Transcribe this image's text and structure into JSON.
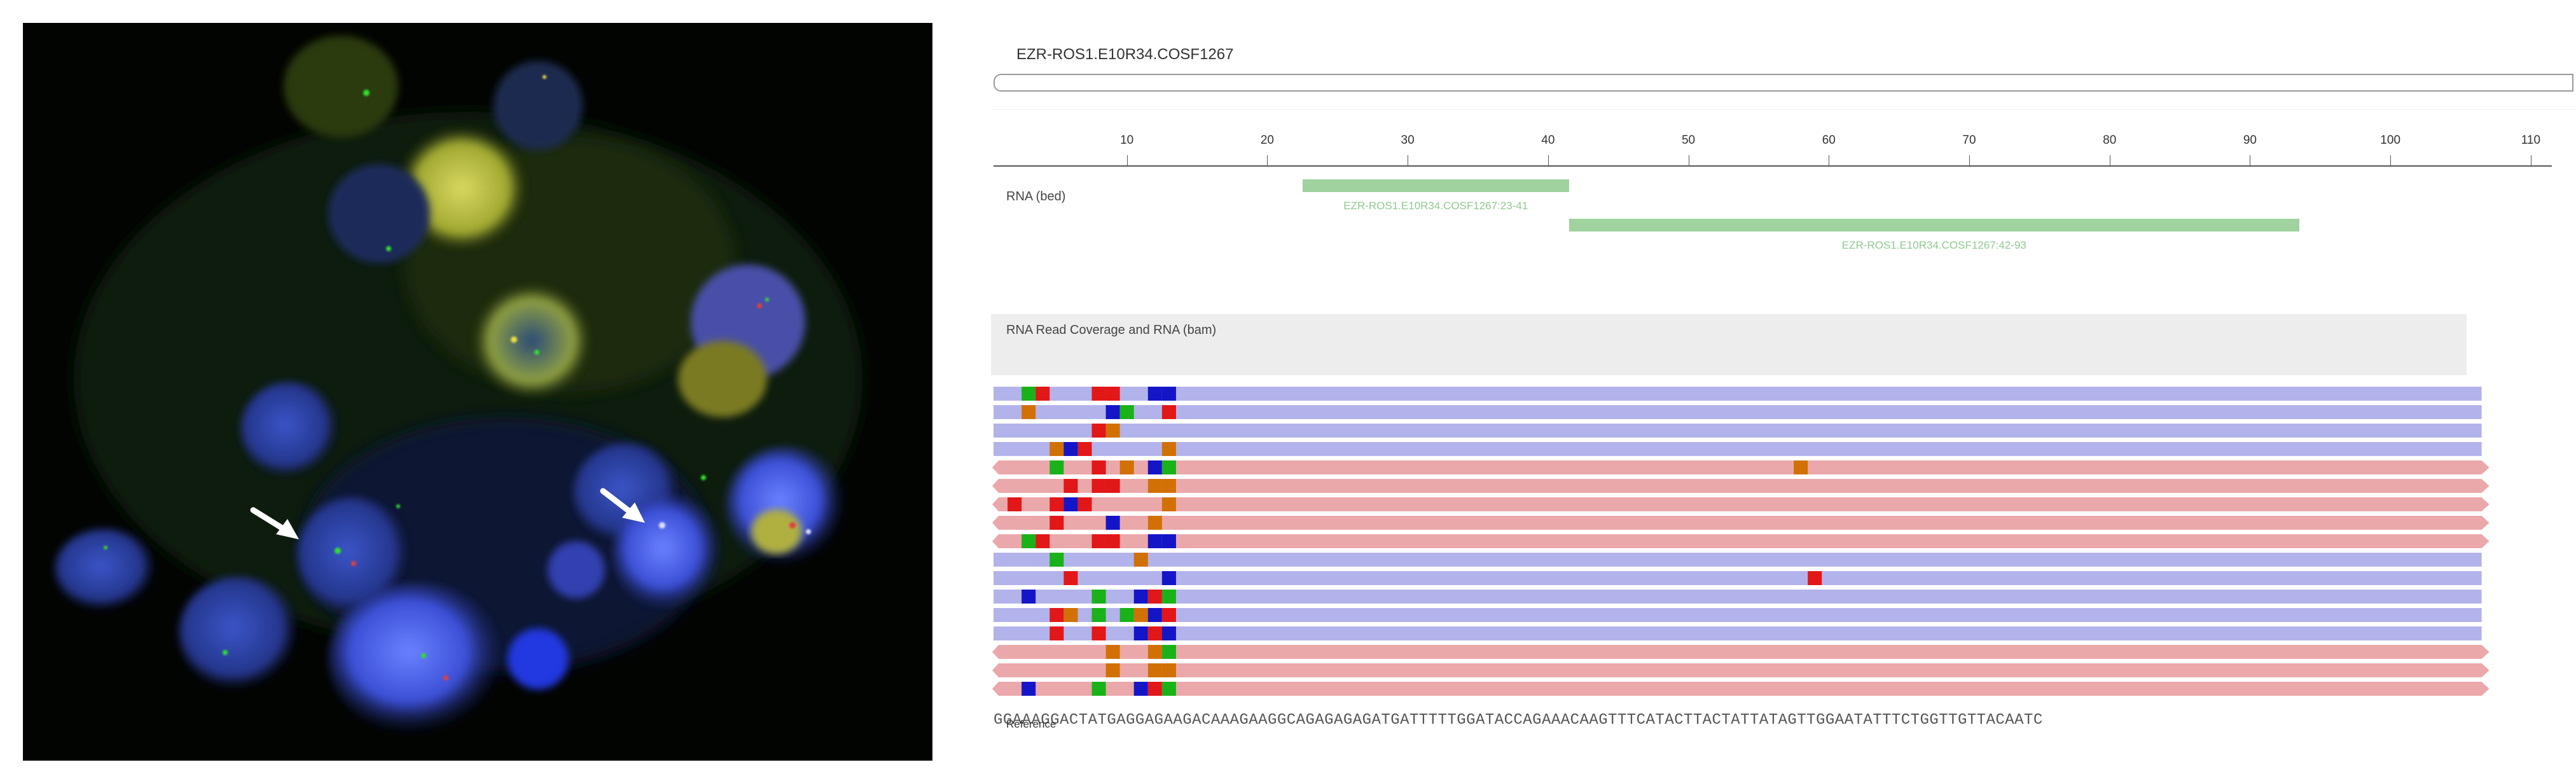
{
  "fish_image": {
    "caption": "",
    "arrows": [
      "arrow-left",
      "arrow-right"
    ]
  },
  "igv": {
    "locus_title": "EZR-ROS1.E10R34.COSF1267",
    "ruler": {
      "ticks": [
        10,
        20,
        30,
        40,
        50,
        60,
        70,
        80,
        90,
        100,
        110
      ],
      "range": [
        0.5,
        111.5
      ]
    },
    "bed_track": {
      "label": "RNA (bed)",
      "features": [
        {
          "name": "EZR-ROS1.E10R34.COSF1267:23-41",
          "start": 23,
          "end": 41
        },
        {
          "name": "EZR-ROS1.E10R34.COSF1267:42-93",
          "start": 42,
          "end": 93
        }
      ]
    },
    "coverage_track": {
      "label": "RNA Read Coverage and RNA (bam)"
    },
    "reference": {
      "label": "Reference",
      "sequence": "GGAAAGGACTATGAGGAGAAGACAAAGAAGGCAGAGAGAGATGATTTTTGGATACCAGAAACAAGTTTCATACTTACTATTATAGTTGGAATATTTCTGGTTGTTACAATC"
    },
    "reads": [
      {
        "strand": "+",
        "mismatches": [
          [
            3,
            "G"
          ],
          [
            4,
            "R"
          ],
          [
            8,
            "R"
          ],
          [
            9,
            "R"
          ],
          [
            12,
            "B"
          ],
          [
            13,
            "B"
          ]
        ]
      },
      {
        "strand": "+",
        "mismatches": [
          [
            3,
            "O"
          ],
          [
            9,
            "B"
          ],
          [
            10,
            "G"
          ],
          [
            13,
            "R"
          ]
        ]
      },
      {
        "strand": "+",
        "mismatches": [
          [
            8,
            "R"
          ],
          [
            9,
            "O"
          ]
        ]
      },
      {
        "strand": "+",
        "mismatches": [
          [
            5,
            "O"
          ],
          [
            6,
            "B"
          ],
          [
            7,
            "R"
          ],
          [
            13,
            "O"
          ]
        ]
      },
      {
        "strand": "-",
        "mismatches": [
          [
            5,
            "G"
          ],
          [
            8,
            "R"
          ],
          [
            10,
            "O"
          ],
          [
            12,
            "B"
          ],
          [
            13,
            "G"
          ],
          [
            58,
            "O"
          ]
        ]
      },
      {
        "strand": "-",
        "mismatches": [
          [
            6,
            "R"
          ],
          [
            8,
            "R"
          ],
          [
            9,
            "R"
          ],
          [
            12,
            "O"
          ],
          [
            13,
            "O"
          ]
        ]
      },
      {
        "strand": "-",
        "mismatches": [
          [
            2,
            "R"
          ],
          [
            5,
            "R"
          ],
          [
            6,
            "B"
          ],
          [
            7,
            "R"
          ],
          [
            13,
            "O"
          ]
        ]
      },
      {
        "strand": "-",
        "mismatches": [
          [
            5,
            "R"
          ],
          [
            9,
            "B"
          ],
          [
            12,
            "O"
          ]
        ]
      },
      {
        "strand": "-",
        "mismatches": [
          [
            3,
            "G"
          ],
          [
            4,
            "R"
          ],
          [
            8,
            "R"
          ],
          [
            9,
            "R"
          ],
          [
            12,
            "B"
          ],
          [
            13,
            "B"
          ]
        ]
      },
      {
        "strand": "+",
        "mismatches": [
          [
            5,
            "G"
          ],
          [
            11,
            "O"
          ]
        ]
      },
      {
        "strand": "+",
        "mismatches": [
          [
            6,
            "R"
          ],
          [
            13,
            "B"
          ],
          [
            59,
            "R"
          ]
        ]
      },
      {
        "strand": "+",
        "mismatches": [
          [
            3,
            "B"
          ],
          [
            8,
            "G"
          ],
          [
            11,
            "B"
          ],
          [
            12,
            "R"
          ],
          [
            13,
            "G"
          ]
        ]
      },
      {
        "strand": "+",
        "mismatches": [
          [
            5,
            "R"
          ],
          [
            6,
            "O"
          ],
          [
            8,
            "G"
          ],
          [
            10,
            "G"
          ],
          [
            11,
            "O"
          ],
          [
            12,
            "B"
          ],
          [
            13,
            "R"
          ]
        ]
      },
      {
        "strand": "+",
        "mismatches": [
          [
            5,
            "R"
          ],
          [
            8,
            "R"
          ],
          [
            11,
            "B"
          ],
          [
            12,
            "R"
          ],
          [
            13,
            "B"
          ]
        ]
      },
      {
        "strand": "-",
        "mismatches": [
          [
            9,
            "O"
          ],
          [
            12,
            "O"
          ],
          [
            13,
            "G"
          ]
        ]
      },
      {
        "strand": "-",
        "mismatches": [
          [
            9,
            "O"
          ],
          [
            12,
            "O"
          ],
          [
            13,
            "O"
          ]
        ]
      },
      {
        "strand": "-",
        "mismatches": [
          [
            3,
            "B"
          ],
          [
            8,
            "G"
          ],
          [
            11,
            "B"
          ],
          [
            12,
            "R"
          ],
          [
            13,
            "G"
          ]
        ]
      }
    ],
    "colors": {
      "forward_read": "#b3b3eb",
      "reverse_read": "#eba8ab",
      "bed_feature": "#9fd29f",
      "G": "#19b219",
      "R": "#e21717",
      "B": "#1515c8",
      "O": "#d17105"
    }
  }
}
